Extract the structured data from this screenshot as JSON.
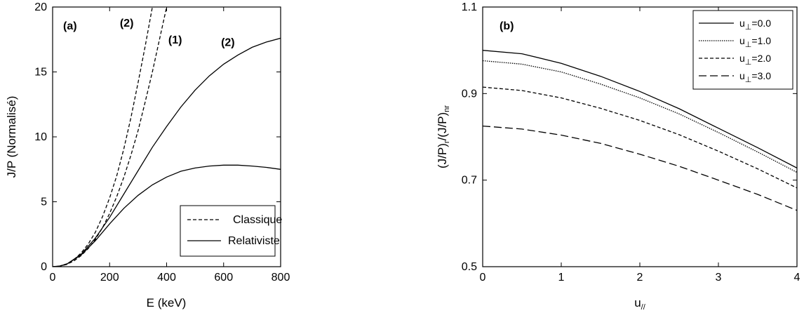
{
  "chart_data": [
    {
      "type": "line",
      "panel_label": "(a)",
      "xlabel": "E (keV)",
      "ylabel": "J/P (Normalisé)",
      "xlim": [
        0,
        800
      ],
      "ylim": [
        0,
        20
      ],
      "xticks": [
        "0",
        "200",
        "400",
        "600",
        "800"
      ],
      "yticks": [
        "0",
        "5",
        "10",
        "15",
        "20"
      ],
      "grid": false,
      "legend_placement": "bottom-right",
      "legend": [
        {
          "label": "Classique",
          "style": "dashed"
        },
        {
          "label": "Relativiste",
          "style": "solid"
        }
      ],
      "annotations": [
        {
          "text": "(2)",
          "x": 260,
          "y": 18.5
        },
        {
          "text": "(1)",
          "x": 430,
          "y": 17.2
        },
        {
          "text": "(2)",
          "x": 615,
          "y": 17.0
        },
        {
          "text": "(1)",
          "x": 705,
          "y": 3.0
        }
      ],
      "series": [
        {
          "style": "dashed",
          "x": [
            0,
            25,
            50,
            75,
            100,
            125,
            150,
            175,
            200,
            225,
            250,
            275,
            300,
            325,
            350
          ],
          "y": [
            0,
            0.05,
            0.22,
            0.55,
            1.05,
            1.75,
            2.65,
            3.85,
            5.3,
            7.0,
            9.1,
            11.5,
            14.2,
            17.0,
            20.0
          ]
        },
        {
          "style": "dashed",
          "x": [
            0,
            25,
            50,
            75,
            100,
            125,
            150,
            175,
            200,
            225,
            250,
            275,
            300,
            325,
            350,
            375,
            400
          ],
          "y": [
            0,
            0.04,
            0.18,
            0.45,
            0.85,
            1.4,
            2.1,
            3.0,
            4.1,
            5.4,
            6.9,
            8.6,
            10.5,
            12.7,
            15.0,
            17.5,
            20.0
          ]
        },
        {
          "style": "solid",
          "x": [
            0,
            25,
            50,
            100,
            150,
            200,
            250,
            300,
            350,
            400,
            450,
            500,
            550,
            600,
            650,
            700,
            750,
            800
          ],
          "y": [
            0,
            0.05,
            0.2,
            0.95,
            2.2,
            3.8,
            5.6,
            7.4,
            9.2,
            10.8,
            12.3,
            13.6,
            14.7,
            15.6,
            16.3,
            16.9,
            17.3,
            17.6
          ]
        },
        {
          "style": "solid",
          "x": [
            0,
            25,
            50,
            100,
            150,
            200,
            250,
            300,
            350,
            400,
            450,
            500,
            550,
            600,
            650,
            700,
            750,
            800
          ],
          "y": [
            0,
            0.05,
            0.2,
            0.9,
            2.0,
            3.3,
            4.5,
            5.5,
            6.3,
            6.9,
            7.35,
            7.6,
            7.75,
            7.82,
            7.82,
            7.75,
            7.65,
            7.5
          ]
        }
      ]
    },
    {
      "type": "line",
      "panel_label": "(b)",
      "xlabel": "u//",
      "ylabel": "(J/P)r/(J/P)nr",
      "xlim": [
        0,
        4
      ],
      "ylim": [
        0.5,
        1.1
      ],
      "xticks": [
        "0",
        "1",
        "2",
        "3",
        "4"
      ],
      "yticks": [
        "0.5",
        "0.7",
        "0.9",
        "1.1"
      ],
      "grid": false,
      "legend_placement": "top-right",
      "series": [
        {
          "name": "u⊥=0.0",
          "style": "solid",
          "x": [
            0,
            0.5,
            1,
            1.5,
            2,
            2.5,
            3,
            3.5,
            4
          ],
          "y": [
            1.0,
            0.992,
            0.97,
            0.94,
            0.905,
            0.865,
            0.82,
            0.775,
            0.728
          ]
        },
        {
          "name": "u⊥=1.0",
          "style": "dotted",
          "x": [
            0,
            0.5,
            1,
            1.5,
            2,
            2.5,
            3,
            3.5,
            4
          ],
          "y": [
            0.976,
            0.968,
            0.95,
            0.922,
            0.89,
            0.853,
            0.81,
            0.765,
            0.718
          ]
        },
        {
          "name": "u⊥=2.0",
          "style": "dashed",
          "x": [
            0,
            0.5,
            1,
            1.5,
            2,
            2.5,
            3,
            3.5,
            4
          ],
          "y": [
            0.915,
            0.907,
            0.89,
            0.866,
            0.838,
            0.805,
            0.767,
            0.726,
            0.682
          ]
        },
        {
          "name": "u⊥=3.0",
          "style": "longdash",
          "x": [
            0,
            0.5,
            1,
            1.5,
            2,
            2.5,
            3,
            3.5,
            4
          ],
          "y": [
            0.825,
            0.818,
            0.804,
            0.785,
            0.76,
            0.732,
            0.7,
            0.667,
            0.63
          ]
        }
      ]
    }
  ]
}
